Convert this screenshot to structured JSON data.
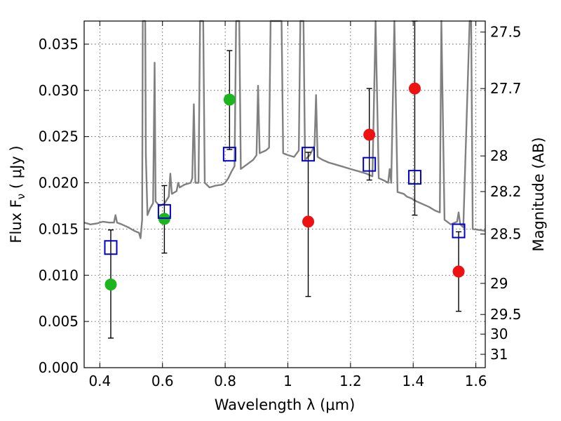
{
  "chart_data": {
    "type": "scatter",
    "title": "",
    "xlabel": "Wavelength  λ (μm)",
    "ylabel": "Flux  F_ν  ( μJy )",
    "y2label": "Magnitude (AB)",
    "xlim": [
      0.35,
      1.63
    ],
    "ylim": [
      0.0,
      0.0375
    ],
    "grid": true,
    "x_ticks": [
      {
        "v": 0.4,
        "label": "0.4"
      },
      {
        "v": 0.6,
        "label": "0.6"
      },
      {
        "v": 0.8,
        "label": "0.8"
      },
      {
        "v": 1.0,
        "label": "1"
      },
      {
        "v": 1.2,
        "label": "1.2"
      },
      {
        "v": 1.4,
        "label": "1.4"
      },
      {
        "v": 1.6,
        "label": "1.6"
      }
    ],
    "y_ticks": [
      {
        "v": 0.0,
        "label": "0.000"
      },
      {
        "v": 0.005,
        "label": "0.005"
      },
      {
        "v": 0.01,
        "label": "0.010"
      },
      {
        "v": 0.015,
        "label": "0.015"
      },
      {
        "v": 0.02,
        "label": "0.020"
      },
      {
        "v": 0.025,
        "label": "0.025"
      },
      {
        "v": 0.03,
        "label": "0.030"
      },
      {
        "v": 0.035,
        "label": "0.035"
      }
    ],
    "y2_ticks": [
      {
        "mag": 27.5,
        "label": "27.5"
      },
      {
        "mag": 27.7,
        "label": "27.7"
      },
      {
        "mag": 28.0,
        "label": "28"
      },
      {
        "mag": 28.2,
        "label": "28.2"
      },
      {
        "mag": 28.5,
        "label": "28.5"
      },
      {
        "mag": 29.0,
        "label": "29"
      },
      {
        "mag": 29.5,
        "label": "29.5"
      },
      {
        "mag": 30.0,
        "label": "30"
      },
      {
        "mag": 31.0,
        "label": "31"
      }
    ],
    "colors": {
      "model": "#808080",
      "green": "#1db51d",
      "red": "#ee1111",
      "box": "#0000cc",
      "errorbar": "#000000"
    },
    "series": [
      {
        "marker": "circle",
        "color": "#1db51d",
        "points": [
          {
            "x": 0.435,
            "y": 0.009,
            "ylo": 0.0032,
            "yhi": 0.0149
          },
          {
            "x": 0.606,
            "y": 0.0161,
            "ylo": 0.0124,
            "yhi": 0.0197
          },
          {
            "x": 0.814,
            "y": 0.029,
            "ylo": 0.0236,
            "yhi": 0.0343
          }
        ]
      },
      {
        "marker": "circle",
        "color": "#ee1111",
        "points": [
          {
            "x": 1.065,
            "y": 0.0158,
            "ylo": 0.0077,
            "yhi": 0.0233
          },
          {
            "x": 1.26,
            "y": 0.0252,
            "ylo": 0.0203,
            "yhi": 0.0302
          },
          {
            "x": 1.405,
            "y": 0.0302,
            "ylo": 0.0165,
            "yhi": 0.0375
          },
          {
            "x": 1.545,
            "y": 0.0104,
            "ylo": 0.0061,
            "yhi": 0.0147
          }
        ]
      },
      {
        "marker": "square-open",
        "color": "#0000cc",
        "points": [
          {
            "x": 0.435,
            "y": 0.013
          },
          {
            "x": 0.606,
            "y": 0.0169
          },
          {
            "x": 0.814,
            "y": 0.0231
          },
          {
            "x": 1.065,
            "y": 0.0231
          },
          {
            "x": 1.26,
            "y": 0.022
          },
          {
            "x": 1.405,
            "y": 0.0206
          },
          {
            "x": 1.545,
            "y": 0.0148
          }
        ]
      }
    ],
    "model_spectrum": [
      [
        0.35,
        0.0157
      ],
      [
        0.37,
        0.0155
      ],
      [
        0.39,
        0.0156
      ],
      [
        0.41,
        0.0158
      ],
      [
        0.43,
        0.0157
      ],
      [
        0.445,
        0.0157
      ],
      [
        0.45,
        0.0165
      ],
      [
        0.455,
        0.0157
      ],
      [
        0.47,
        0.0155
      ],
      [
        0.49,
        0.0152
      ],
      [
        0.51,
        0.0148
      ],
      [
        0.525,
        0.0146
      ],
      [
        0.53,
        0.014
      ],
      [
        0.535,
        0.016
      ],
      [
        0.537,
        0.0375
      ],
      [
        0.545,
        0.0375
      ],
      [
        0.547,
        0.023
      ],
      [
        0.552,
        0.0165
      ],
      [
        0.56,
        0.0172
      ],
      [
        0.57,
        0.0178
      ],
      [
        0.575,
        0.033
      ],
      [
        0.578,
        0.018
      ],
      [
        0.59,
        0.0175
      ],
      [
        0.605,
        0.0177
      ],
      [
        0.62,
        0.0185
      ],
      [
        0.625,
        0.021
      ],
      [
        0.63,
        0.0188
      ],
      [
        0.645,
        0.0191
      ],
      [
        0.65,
        0.02
      ],
      [
        0.655,
        0.0195
      ],
      [
        0.67,
        0.0198
      ],
      [
        0.69,
        0.02
      ],
      [
        0.695,
        0.0205
      ],
      [
        0.7,
        0.0285
      ],
      [
        0.705,
        0.02
      ],
      [
        0.715,
        0.02
      ],
      [
        0.72,
        0.0375
      ],
      [
        0.73,
        0.0375
      ],
      [
        0.735,
        0.02
      ],
      [
        0.75,
        0.0195
      ],
      [
        0.77,
        0.0197
      ],
      [
        0.79,
        0.0198
      ],
      [
        0.8,
        0.02
      ],
      [
        0.81,
        0.0205
      ],
      [
        0.82,
        0.0212
      ],
      [
        0.83,
        0.0218
      ],
      [
        0.835,
        0.0375
      ],
      [
        0.845,
        0.0375
      ],
      [
        0.85,
        0.0215
      ],
      [
        0.87,
        0.022
      ],
      [
        0.89,
        0.0225
      ],
      [
        0.9,
        0.023
      ],
      [
        0.905,
        0.0305
      ],
      [
        0.91,
        0.0232
      ],
      [
        0.93,
        0.0235
      ],
      [
        0.94,
        0.0238
      ],
      [
        0.945,
        0.0375
      ],
      [
        0.98,
        0.0375
      ],
      [
        0.985,
        0.0232
      ],
      [
        1.0,
        0.023
      ],
      [
        1.02,
        0.0228
      ],
      [
        1.035,
        0.0235
      ],
      [
        1.04,
        0.0375
      ],
      [
        1.05,
        0.0375
      ],
      [
        1.055,
        0.0225
      ],
      [
        1.07,
        0.023
      ],
      [
        1.085,
        0.024
      ],
      [
        1.09,
        0.0295
      ],
      [
        1.095,
        0.0228
      ],
      [
        1.11,
        0.0225
      ],
      [
        1.13,
        0.0222
      ],
      [
        1.15,
        0.022
      ],
      [
        1.17,
        0.0218
      ],
      [
        1.19,
        0.0216
      ],
      [
        1.21,
        0.0214
      ],
      [
        1.23,
        0.0212
      ],
      [
        1.25,
        0.021
      ],
      [
        1.27,
        0.0207
      ],
      [
        1.28,
        0.0375
      ],
      [
        1.29,
        0.0205
      ],
      [
        1.31,
        0.0202
      ],
      [
        1.32,
        0.02
      ],
      [
        1.325,
        0.0215
      ],
      [
        1.33,
        0.02
      ],
      [
        1.34,
        0.0375
      ],
      [
        1.35,
        0.019
      ],
      [
        1.37,
        0.0188
      ],
      [
        1.38,
        0.0185
      ],
      [
        1.395,
        0.0183
      ],
      [
        1.41,
        0.018
      ],
      [
        1.43,
        0.0177
      ],
      [
        1.45,
        0.0174
      ],
      [
        1.47,
        0.017
      ],
      [
        1.485,
        0.0168
      ],
      [
        1.49,
        0.0375
      ],
      [
        1.5,
        0.016
      ],
      [
        1.52,
        0.0155
      ],
      [
        1.54,
        0.0158
      ],
      [
        1.545,
        0.0168
      ],
      [
        1.55,
        0.0155
      ],
      [
        1.56,
        0.0152
      ],
      [
        1.58,
        0.0375
      ],
      [
        1.585,
        0.0375
      ],
      [
        1.59,
        0.015
      ],
      [
        1.61,
        0.0149
      ],
      [
        1.63,
        0.0148
      ]
    ]
  }
}
